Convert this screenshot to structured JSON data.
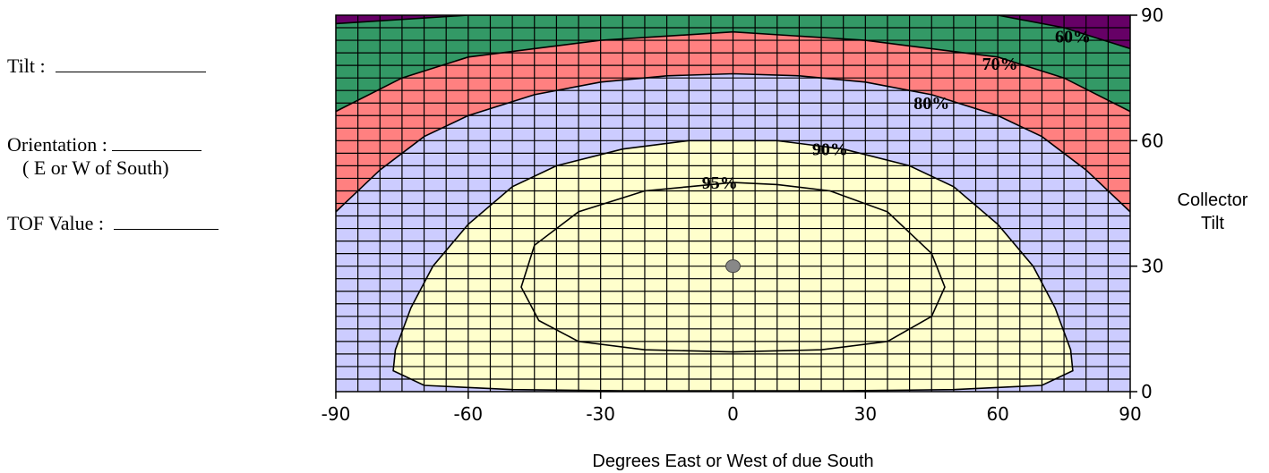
{
  "form": {
    "tilt_label": "Tilt :",
    "orientation_label": "Orientation :",
    "orientation_hint": "( E or W of South)",
    "tof_label": "TOF Value :"
  },
  "chart_data": {
    "type": "heatmap",
    "title": "",
    "xlabel": "Degrees East or West of due South",
    "ylabel": "Collector Tilt",
    "xlim": [
      -90,
      90
    ],
    "ylim": [
      0,
      90
    ],
    "x_ticks": [
      -90,
      -60,
      -30,
      0,
      30,
      60,
      90
    ],
    "y_ticks": [
      0,
      30,
      60,
      90
    ],
    "grid": true,
    "grid_step": [
      5,
      3
    ],
    "y_axis_side": "right",
    "optimum_point": {
      "x": 0,
      "y": 30
    },
    "bands": [
      {
        "label": "",
        "min_tof": 0,
        "color": "#660066"
      },
      {
        "label": "60%",
        "min_tof": 60,
        "color": "#339966"
      },
      {
        "label": "70%",
        "min_tof": 70,
        "color": "#ff8080"
      },
      {
        "label": "80%",
        "min_tof": 80,
        "color": "#ccccff"
      },
      {
        "label": "90%",
        "min_tof": 90,
        "color": "#ffffcc"
      }
    ],
    "contours": [
      {
        "label": "60%",
        "points": [
          [
            -90,
            88
          ],
          [
            -60,
            90
          ],
          [
            0,
            90
          ],
          [
            60,
            90
          ],
          [
            75,
            87
          ],
          [
            90,
            82
          ]
        ]
      },
      {
        "label": "70%",
        "points": [
          [
            -90,
            67
          ],
          [
            -75,
            75
          ],
          [
            -60,
            80
          ],
          [
            -30,
            84
          ],
          [
            0,
            86
          ],
          [
            30,
            84
          ],
          [
            60,
            80
          ],
          [
            75,
            75
          ],
          [
            90,
            67
          ]
        ]
      },
      {
        "label": "80%",
        "points": [
          [
            -90,
            43
          ],
          [
            -80,
            53
          ],
          [
            -70,
            61
          ],
          [
            -60,
            66
          ],
          [
            -45,
            71
          ],
          [
            -30,
            74
          ],
          [
            -15,
            75.5
          ],
          [
            0,
            76
          ],
          [
            15,
            75.5
          ],
          [
            30,
            74
          ],
          [
            45,
            71
          ],
          [
            60,
            66
          ],
          [
            70,
            61
          ],
          [
            80,
            53
          ],
          [
            90,
            43
          ]
        ]
      },
      {
        "label": "90%",
        "points": [
          [
            -77,
            5
          ],
          [
            -76.5,
            10
          ],
          [
            -73,
            20
          ],
          [
            -68,
            30
          ],
          [
            -60,
            40
          ],
          [
            -50,
            49
          ],
          [
            -40,
            54
          ],
          [
            -25,
            58
          ],
          [
            -10,
            60
          ],
          [
            0,
            60
          ],
          [
            10,
            60
          ],
          [
            25,
            58
          ],
          [
            40,
            54
          ],
          [
            50,
            49
          ],
          [
            60,
            40
          ],
          [
            68,
            30
          ],
          [
            73,
            20
          ],
          [
            76.5,
            10
          ],
          [
            77,
            5
          ],
          [
            70,
            1.5
          ],
          [
            50,
            0.5
          ],
          [
            25,
            0.2
          ],
          [
            0,
            0.2
          ],
          [
            -25,
            0.2
          ],
          [
            -50,
            0.5
          ],
          [
            -70,
            1.5
          ]
        ]
      },
      {
        "label": "95%",
        "points": [
          [
            -48,
            25
          ],
          [
            -45,
            35
          ],
          [
            -35,
            43
          ],
          [
            -20,
            48
          ],
          [
            -10,
            49
          ],
          [
            0,
            50
          ],
          [
            10,
            49.5
          ],
          [
            22,
            48
          ],
          [
            35,
            43
          ],
          [
            45,
            33
          ],
          [
            48,
            25
          ],
          [
            45,
            18
          ],
          [
            35,
            12
          ],
          [
            20,
            10
          ],
          [
            0,
            9.5
          ],
          [
            -20,
            10
          ],
          [
            -35,
            12
          ],
          [
            -44,
            17
          ]
        ]
      }
    ],
    "contour_labels": [
      {
        "text": "60%",
        "x": 77,
        "y": 85
      },
      {
        "text": "70%",
        "x": 60.5,
        "y": 78.5
      },
      {
        "text": "80%",
        "x": 45,
        "y": 69
      },
      {
        "text": "90%",
        "x": 22,
        "y": 58
      },
      {
        "text": "95%",
        "x": -3,
        "y": 50
      }
    ]
  }
}
